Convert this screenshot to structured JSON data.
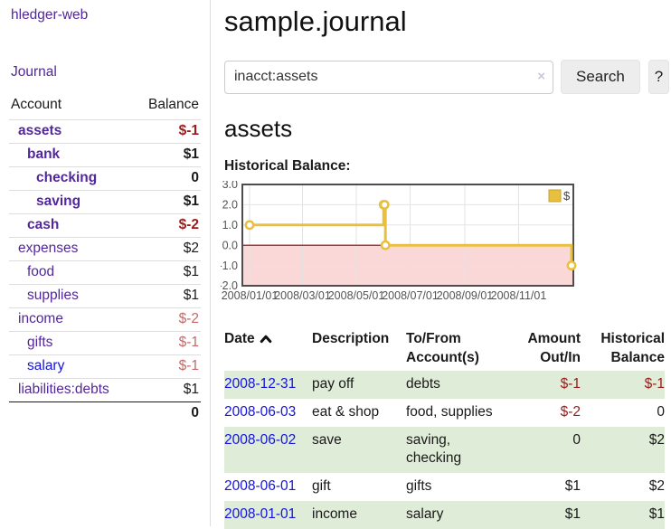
{
  "colors": {
    "purple": "#53279c",
    "blue": "#1414dd",
    "neg": "#9b1b1b",
    "negsoft": "#bf6a6a",
    "stripe": "#dfecd7"
  },
  "sidebar": {
    "app_title": "hledger-web",
    "journal_label": "Journal",
    "accounts_table": {
      "account_header": "Account",
      "balance_header": "Balance",
      "rows": [
        {
          "label": "assets",
          "level": 1,
          "bold": true,
          "balance": "$-1",
          "balance_style": "neg"
        },
        {
          "label": "bank",
          "level": 2,
          "bold": true,
          "balance": "$1",
          "balance_style": "pos"
        },
        {
          "label": "checking",
          "level": 3,
          "bold": true,
          "balance": "0",
          "balance_style": "pos"
        },
        {
          "label": "saving",
          "level": 3,
          "bold": true,
          "balance": "$1",
          "balance_style": "pos"
        },
        {
          "label": "cash",
          "level": 2,
          "bold": true,
          "balance": "$-2",
          "balance_style": "neg"
        },
        {
          "label": "expenses",
          "level": 1,
          "bold": false,
          "balance": "$2",
          "balance_style": "pos"
        },
        {
          "label": "food",
          "level": 2,
          "bold": false,
          "balance": "$1",
          "balance_style": "pos"
        },
        {
          "label": "supplies",
          "level": 2,
          "bold": false,
          "balance": "$1",
          "balance_style": "pos"
        },
        {
          "label": "income",
          "level": 1,
          "bold": false,
          "balance": "$-2",
          "balance_style": "negsoft"
        },
        {
          "label": "gifts",
          "level": 2,
          "bold": false,
          "balance": "$-1",
          "balance_style": "negsoft"
        },
        {
          "label": "salary",
          "level": 2,
          "bold": false,
          "unvisited": true,
          "balance": "$-1",
          "balance_style": "negsoft"
        },
        {
          "label": "liabilities:debts",
          "level": 1,
          "bold": false,
          "balance": "$1",
          "balance_style": "pos"
        }
      ],
      "total": "0"
    }
  },
  "header": {
    "title": "sample.journal"
  },
  "search": {
    "value": "inacct:assets",
    "clear_icon": "×",
    "search_label": "Search",
    "help_label": "?"
  },
  "account_page": {
    "heading": "assets",
    "chart_label": "Historical Balance:"
  },
  "chart_data": {
    "type": "line",
    "step": true,
    "x_range": [
      "2008-01-01",
      "2008-12-31"
    ],
    "ylim": [
      -2.0,
      3.0
    ],
    "y_ticks": [
      3.0,
      2.0,
      1.0,
      0.0,
      -1.0,
      -2.0
    ],
    "x_ticks": [
      "2008/01/01",
      "2008/03/01",
      "2008/05/01",
      "2008/07/01",
      "2008/09/01",
      "2008/11/01"
    ],
    "series": [
      {
        "name": "$",
        "color": "#e9c03d",
        "points": [
          [
            "2008-01-01",
            1
          ],
          [
            "2008-06-01",
            2
          ],
          [
            "2008-06-02",
            2
          ],
          [
            "2008-06-03",
            0
          ],
          [
            "2008-12-31",
            -1
          ]
        ]
      }
    ],
    "negative_region_color": "#fbd8d8",
    "zero_line_color": "#8b0000",
    "grid_color": "#e3e3e3",
    "border_color": "#4d4d4d",
    "axis_text_color": "#545454",
    "legend": {
      "label": "$",
      "position": "top-right"
    }
  },
  "transactions_table": {
    "headers": {
      "date": "Date",
      "description": "Description",
      "accounts": "To/From Account(s)",
      "amount": "Amount Out/In",
      "balance": "Historical Balance"
    },
    "rows": [
      {
        "date": "2008-12-31",
        "description": "pay off",
        "accounts": "debts",
        "amount": "$-1",
        "amount_style": "neg",
        "balance": "$-1",
        "balance_style": "neg",
        "shaded": true
      },
      {
        "date": "2008-06-03",
        "description": "eat & shop",
        "accounts": "food, supplies",
        "amount": "$-2",
        "amount_style": "neg",
        "balance": "0",
        "balance_style": "pos",
        "shaded": false
      },
      {
        "date": "2008-06-02",
        "description": "save",
        "accounts": "saving, checking",
        "amount": "0",
        "amount_style": "pos",
        "balance": "$2",
        "balance_style": "pos",
        "shaded": true
      },
      {
        "date": "2008-06-01",
        "description": "gift",
        "accounts": "gifts",
        "amount": "$1",
        "amount_style": "pos",
        "balance": "$2",
        "balance_style": "pos",
        "shaded": false
      },
      {
        "date": "2008-01-01",
        "description": "income",
        "accounts": "salary",
        "amount": "$1",
        "amount_style": "pos",
        "balance": "$1",
        "balance_style": "pos",
        "shaded": true
      }
    ]
  }
}
